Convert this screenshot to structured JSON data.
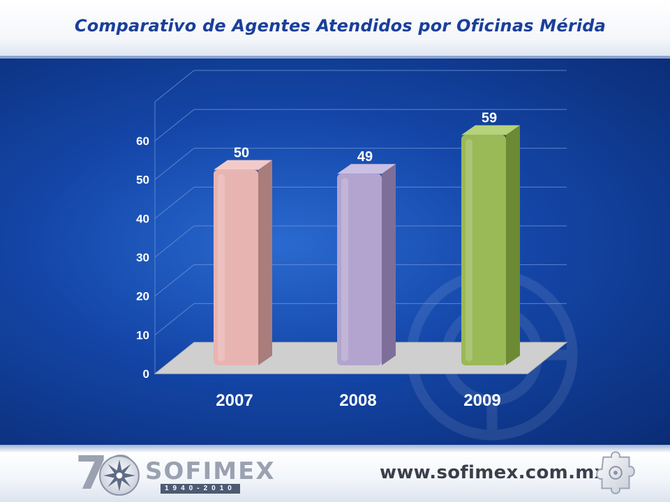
{
  "slide": {
    "title": "Comparativo de Agentes Atendidos por Oficinas Mérida",
    "footer": {
      "logo_number": "70",
      "logo_name": "SOFIMEX",
      "logo_years": "1940-2010",
      "website": "www.sofimex.com.mx"
    }
  },
  "chart_data": {
    "type": "bar",
    "title": "Comparativo de Agentes Atendidos por Oficinas Mérida",
    "xlabel": "",
    "ylabel": "",
    "categories": [
      "2007",
      "2008",
      "2009"
    ],
    "values": [
      50,
      49,
      59
    ],
    "data_labels": [
      "50",
      "49",
      "59"
    ],
    "ylim": [
      0,
      60
    ],
    "yticks": [
      0,
      10,
      20,
      30,
      40,
      50,
      60
    ],
    "grid": true,
    "legend": "none",
    "style": "3d-column",
    "colors": [
      "#e8b4b2",
      "#b3a4cf",
      "#9ab957"
    ],
    "side_colors": [
      "#a87d7b",
      "#7d6f99",
      "#6c8a34"
    ],
    "top_colors": [
      "#f2cbc9",
      "#cbbfe3",
      "#b6d27a"
    ],
    "background": "#1446a8"
  }
}
